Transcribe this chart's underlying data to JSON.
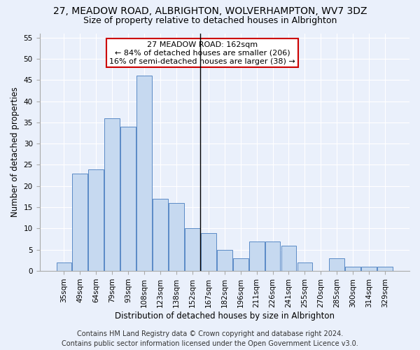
{
  "title": "27, MEADOW ROAD, ALBRIGHTON, WOLVERHAMPTON, WV7 3DZ",
  "subtitle": "Size of property relative to detached houses in Albrighton",
  "xlabel": "Distribution of detached houses by size in Albrighton",
  "ylabel": "Number of detached properties",
  "categories": [
    "35sqm",
    "49sqm",
    "64sqm",
    "79sqm",
    "93sqm",
    "108sqm",
    "123sqm",
    "138sqm",
    "152sqm",
    "167sqm",
    "182sqm",
    "196sqm",
    "211sqm",
    "226sqm",
    "241sqm",
    "255sqm",
    "270sqm",
    "285sqm",
    "300sqm",
    "314sqm",
    "329sqm"
  ],
  "values": [
    2,
    23,
    24,
    36,
    34,
    46,
    17,
    16,
    10,
    9,
    5,
    3,
    7,
    7,
    6,
    2,
    0,
    3,
    1,
    1,
    1
  ],
  "bar_color": "#c6d9f0",
  "bar_edge_color": "#5a8ac6",
  "annotation_box_color": "#ffffff",
  "annotation_box_edge_color": "#cc0000",
  "vline_color": "#000000",
  "vline_x": 8.5,
  "ylim": [
    0,
    56
  ],
  "yticks": [
    0,
    5,
    10,
    15,
    20,
    25,
    30,
    35,
    40,
    45,
    50,
    55
  ],
  "footer_line1": "Contains HM Land Registry data © Crown copyright and database right 2024.",
  "footer_line2": "Contains public sector information licensed under the Open Government Licence v3.0.",
  "bg_color": "#eaf0fb",
  "plot_bg_color": "#eaf0fb",
  "title_fontsize": 10,
  "subtitle_fontsize": 9,
  "axis_label_fontsize": 8.5,
  "tick_fontsize": 7.5,
  "footer_fontsize": 7,
  "annotation_fontsize": 8,
  "property_label": "27 MEADOW ROAD: 162sqm",
  "annotation_line1": "← 84% of detached houses are smaller (206)",
  "annotation_line2": "16% of semi-detached houses are larger (38) →"
}
